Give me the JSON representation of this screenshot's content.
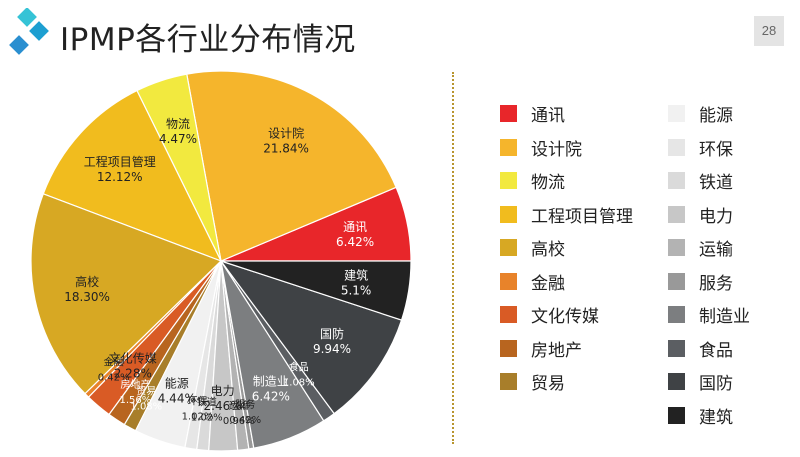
{
  "page": {
    "title": "IPMP各行业分布情况",
    "page_number": "28"
  },
  "chart_data": {
    "type": "pie",
    "title": "IPMP各行业分布情况",
    "legend_position": "right",
    "slices": [
      {
        "label": "通讯",
        "value": 6.42,
        "value_text": "6.42%",
        "color": "#e8262a",
        "text_color": "#ffffff"
      },
      {
        "label": "设计院",
        "value": 21.84,
        "value_text": "21.84%",
        "color": "#f5b52c",
        "text_color": "#222222"
      },
      {
        "label": "物流",
        "value": 4.47,
        "value_text": "4.47%",
        "color": "#f2e93f",
        "text_color": "#222222"
      },
      {
        "label": "工程项目管理",
        "value": 12.12,
        "value_text": "12.12%",
        "color": "#f1bc1e",
        "text_color": "#222222"
      },
      {
        "label": "高校",
        "value": 18.3,
        "value_text": "18.30%",
        "color": "#d7a823",
        "text_color": "#222222"
      },
      {
        "label": "金融",
        "value": 0.42,
        "value_text": "0.42%",
        "color": "#e8832a",
        "text_color": "#222222"
      },
      {
        "label": "文化传媒",
        "value": 2.28,
        "value_text": "2.28%",
        "color": "#d95b25",
        "text_color": "#222222"
      },
      {
        "label": "房地产",
        "value": 1.56,
        "value_text": "1.56%",
        "color": "#b8651f",
        "text_color": "#ffffff"
      },
      {
        "label": "贸易",
        "value": 1.08,
        "value_text": "1.08%",
        "color": "#a87e2a",
        "text_color": "#ffffff"
      },
      {
        "label": "能源",
        "value": 4.44,
        "value_text": "4.44%",
        "color": "#f1f1f1",
        "text_color": "#222222"
      },
      {
        "label": "环保",
        "value": 1.02,
        "value_text": "1.02%",
        "color": "#e6e6e6",
        "text_color": "#222222"
      },
      {
        "label": "铁道",
        "value": 1.02,
        "value_text": "1.02%",
        "color": "#dadada",
        "text_color": "#222222"
      },
      {
        "label": "电力",
        "value": 2.46,
        "value_text": "2.46%",
        "color": "#c7c7c7",
        "text_color": "#222222"
      },
      {
        "label": "运输",
        "value": 0.96,
        "value_text": "0.96%",
        "color": "#b3b3b3",
        "text_color": "#222222"
      },
      {
        "label": "服务",
        "value": 0.42,
        "value_text": "0.42%",
        "color": "#999999",
        "text_color": "#222222"
      },
      {
        "label": "制造业",
        "value": 6.42,
        "value_text": "6.42%",
        "color": "#7c7e80",
        "text_color": "#ffffff"
      },
      {
        "label": "食品",
        "value": 1.08,
        "value_text": "1.08%",
        "color": "#5b5e62",
        "text_color": "#ffffff"
      },
      {
        "label": "国防",
        "value": 9.94,
        "value_text": "9.94%",
        "color": "#3f4245",
        "text_color": "#ffffff"
      },
      {
        "label": "建筑",
        "value": 5.1,
        "value_text": "5.1%",
        "color": "#222222",
        "text_color": "#ffffff"
      }
    ]
  }
}
